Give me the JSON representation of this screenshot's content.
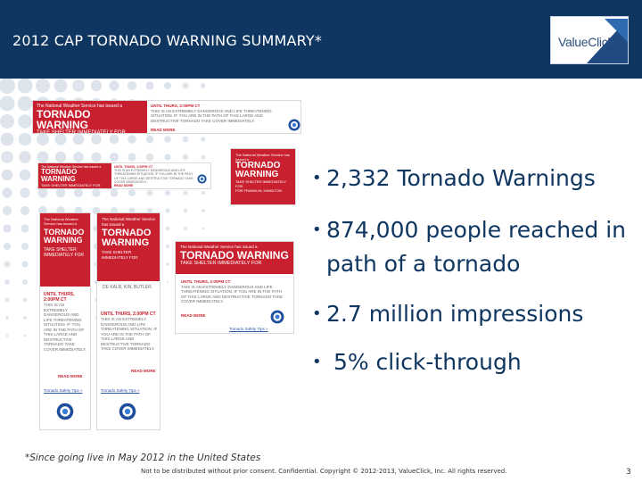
{
  "header": {
    "title": "2012 CAP TORNADO WARNING SUMMARY*",
    "logo_text": "ValueClick",
    "background": "#0f3660"
  },
  "ads": {
    "pre_line": "The National Weather Service has issued a",
    "headline": "TORNADO WARNING",
    "shelter": "TAKE SHELTER IMMEDIATELY FOR",
    "until": "UNTIL THURS, 2:00PM CT",
    "body": "THIS IS AN EXTREMELY DANGEROUS AND LIFE THREATENING SITUATION. IF YOU ARE IN THE PATH OF THIS LARGE AND DESTRUCTIVE TORNADO TAKE COVER IMMEDIATELY.",
    "read_more": "READ MORE",
    "link": "Tornado Safety Tips »",
    "counties_1": "DE KALB, KIN, BUTLER.",
    "counties_2": "FOR FRANKLIN, HAMILTON",
    "red": "#c8202f"
  },
  "bullets": [
    "2,332 Tornado Warnings",
    "874,000 people reached in",
    "path of a tornado",
    "2.7 million impressions",
    " 5% click-through"
  ],
  "footnote": "*Since going live in May 2012 in the United States",
  "legal": "Not to be distributed without prior consent. Confidential. Copyright © 2012-2013, ValueClick, Inc. All rights reserved.",
  "page_number": "3"
}
